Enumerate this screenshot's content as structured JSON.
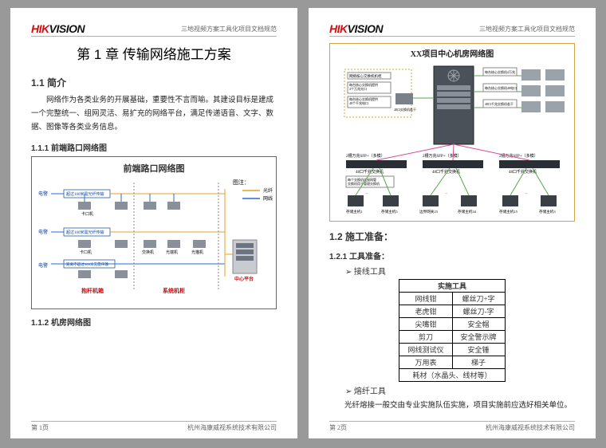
{
  "brand": {
    "left": "HIK",
    "right": "VISION"
  },
  "header_right": "三地视频方案工具化项目文档规范",
  "footer": {
    "company": "杭州海康威视系统技术有限公司",
    "p1": "第 1页",
    "p2": "第 2页"
  },
  "chapter": "第 1 章 传输网络施工方案",
  "s11": "1.1 简介",
  "intro": "网络作为各类业务的开展基础，重要性不言而喻。其建设目标是建成一个完整统一、组网灵活、易扩充的网络平台，满足传递语音、文字、数据、图像等各类业务信息。",
  "s111": "1.1.1 前端路口网络图",
  "fig1_title": "前端路口网络图",
  "fig1": {
    "legend": "图注：",
    "l_optic": "光纤",
    "l_net": "网线",
    "电警": "电警",
    "超过": "超过100米需光纤传输",
    "卡口机": "卡口机",
    "距离": "距离不超过100米无需传输",
    "交换机": "交换机",
    "光端机": "光端机",
    "光猫机": "光猫机",
    "抱杆机箱": "抱杆机箱",
    "系统机柜": "系统机柜",
    "中心平台": "中心平台"
  },
  "s112": "1.1.2 机房网络图",
  "fig2_title": "XX项目中心机房网络图",
  "fig2": {
    "core": "网络核心交换机机柜",
    "server": "服务器",
    "storage": "存储",
    "sw1": "2槽万兆SFP+（多模）",
    "sw1b": "48口千兆交换机",
    "sw2": "2槽万兆SFP+（多模）",
    "sw2b": "48口千兆交换机",
    "sw3": "2槽万兆SFP+（多模）",
    "sw3b": "48口千兆交换机",
    "note1": "每个交换机连接网管交换机用于管理交换机",
    "st1": "存储主机1",
    "st2": "存储主机5",
    "st3": "边界网关23",
    "st4": "存储主机34",
    "st5": "存储主机15",
    "st6": "存储主机3",
    "r1": "每台核心交换机提供4个万兆光口",
    "r2": "每台核心交换机提供48个千兆电口",
    "r3": "48口千兆交换机若干"
  },
  "s12": "1.2 施工准备：",
  "s121": "1.2.1 工具准备：",
  "b1": "接线工具",
  "tool_hdr": "实施工具",
  "tools": [
    [
      "网线钳",
      "螺丝刀+字"
    ],
    [
      "老虎钳",
      "螺丝刀-字"
    ],
    [
      "尖嘴钳",
      "安全帽"
    ],
    [
      "剪刀",
      "安全警示牌"
    ],
    [
      "网线测试仪",
      "安全锤"
    ],
    [
      "万用表",
      "梯子"
    ]
  ],
  "tool_last": "耗材（水晶头、线材等）",
  "b2": "熔纤工具",
  "note": "光纤熔接一般交由专业实施队伍实施，项目实施前应选好相关单位。"
}
